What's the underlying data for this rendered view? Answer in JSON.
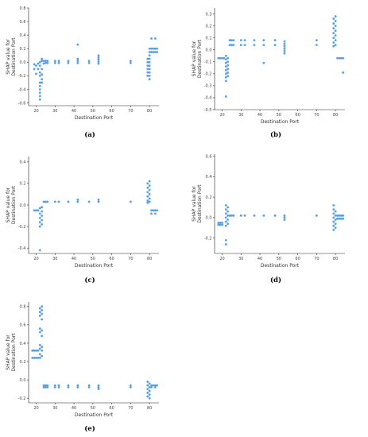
{
  "point_color": "#3a8fde",
  "chart_data": [
    {
      "type": "scatter",
      "caption": "(a)",
      "xlabel": "Destination Port",
      "ylabel": [
        "SHAP value for",
        "Destination Port"
      ],
      "xlim": [
        16,
        85
      ],
      "ylim": [
        -0.64,
        0.8
      ],
      "xticks": [
        20,
        30,
        40,
        50,
        60,
        70,
        80
      ],
      "yticks": [
        -0.6,
        -0.4,
        -0.2,
        0.0,
        0.2,
        0.4,
        0.6,
        0.8
      ],
      "points": [
        [
          19,
          -0.1
        ],
        [
          19,
          -0.03
        ],
        [
          20,
          -0.17
        ],
        [
          20,
          -0.05
        ],
        [
          21,
          -0.1
        ],
        [
          21,
          -0.02
        ],
        [
          22,
          -0.3
        ],
        [
          22,
          -0.35
        ],
        [
          22,
          -0.4
        ],
        [
          22,
          -0.45
        ],
        [
          22,
          -0.5
        ],
        [
          22,
          -0.55
        ],
        [
          22,
          -0.2
        ],
        [
          22,
          -0.15
        ],
        [
          22,
          0.0
        ],
        [
          22,
          -0.05
        ],
        [
          23,
          -0.1
        ],
        [
          23,
          -0.25
        ],
        [
          23,
          -0.3
        ],
        [
          23,
          0.02
        ],
        [
          23,
          0.05
        ],
        [
          23,
          -0.18
        ],
        [
          24,
          0.02
        ],
        [
          24,
          -0.02
        ],
        [
          25,
          0.02
        ],
        [
          25,
          -0.01
        ],
        [
          26,
          0.02
        ],
        [
          26,
          -0.01
        ],
        [
          30,
          0.02
        ],
        [
          30,
          -0.01
        ],
        [
          32,
          0.02
        ],
        [
          32,
          -0.01
        ],
        [
          37,
          0.02
        ],
        [
          37,
          -0.01
        ],
        [
          42,
          0.02
        ],
        [
          42,
          -0.01
        ],
        [
          42,
          0.05
        ],
        [
          42,
          0.26
        ],
        [
          48,
          0.02
        ],
        [
          48,
          -0.01
        ],
        [
          53,
          0.1
        ],
        [
          53,
          0.07
        ],
        [
          53,
          0.04
        ],
        [
          53,
          0.01
        ],
        [
          53,
          -0.02
        ],
        [
          70,
          0.02
        ],
        [
          70,
          -0.01
        ],
        [
          79,
          0.05
        ],
        [
          79,
          0.0
        ],
        [
          79,
          -0.05
        ],
        [
          79,
          -0.1
        ],
        [
          79,
          -0.15
        ],
        [
          79,
          -0.2
        ],
        [
          80,
          0.2
        ],
        [
          80,
          0.15
        ],
        [
          80,
          0.1
        ],
        [
          80,
          0.05
        ],
        [
          80,
          0.0
        ],
        [
          80,
          -0.05
        ],
        [
          80,
          -0.1
        ],
        [
          80,
          -0.15
        ],
        [
          80,
          -0.2
        ],
        [
          80,
          -0.25
        ],
        [
          81,
          0.2
        ],
        [
          81,
          0.15
        ],
        [
          82,
          0.2
        ],
        [
          82,
          0.15
        ],
        [
          83,
          0.2
        ],
        [
          83,
          0.15
        ],
        [
          84,
          0.2
        ],
        [
          84,
          0.15
        ],
        [
          81,
          0.35
        ],
        [
          83,
          0.35
        ]
      ]
    },
    {
      "type": "scatter",
      "caption": "(b)",
      "xlabel": "Destination Port",
      "ylabel": [
        "SHAP value for",
        "Destination Port"
      ],
      "xlim": [
        16,
        85
      ],
      "ylim": [
        -0.5,
        0.35
      ],
      "xticks": [
        20,
        30,
        40,
        50,
        60,
        70,
        80
      ],
      "yticks": [
        -0.5,
        -0.4,
        -0.3,
        -0.2,
        -0.1,
        0.0,
        0.1,
        0.2,
        0.3
      ],
      "points": [
        [
          18,
          -0.07
        ],
        [
          19,
          -0.07
        ],
        [
          20,
          -0.07
        ],
        [
          21,
          -0.07
        ],
        [
          22,
          -0.08
        ],
        [
          22,
          -0.11
        ],
        [
          22,
          -0.14
        ],
        [
          22,
          -0.17
        ],
        [
          22,
          -0.2
        ],
        [
          22,
          -0.23
        ],
        [
          22,
          -0.26
        ],
        [
          22,
          -0.39
        ],
        [
          22,
          -0.05
        ],
        [
          23,
          -0.07
        ],
        [
          23,
          -0.1
        ],
        [
          23,
          -0.13
        ],
        [
          23,
          -0.16
        ],
        [
          23,
          -0.19
        ],
        [
          23,
          -0.22
        ],
        [
          24,
          0.04
        ],
        [
          24,
          0.08
        ],
        [
          25,
          0.04
        ],
        [
          25,
          0.08
        ],
        [
          26,
          0.04
        ],
        [
          26,
          0.08
        ],
        [
          30,
          0.04
        ],
        [
          30,
          0.08
        ],
        [
          32,
          0.04
        ],
        [
          32,
          0.08
        ],
        [
          37,
          0.04
        ],
        [
          37,
          0.08
        ],
        [
          42,
          0.04
        ],
        [
          42,
          0.08
        ],
        [
          42,
          -0.11
        ],
        [
          48,
          0.04
        ],
        [
          48,
          0.08
        ],
        [
          53,
          0.07
        ],
        [
          53,
          0.05
        ],
        [
          53,
          0.03
        ],
        [
          53,
          0.01
        ],
        [
          53,
          -0.01
        ],
        [
          53,
          -0.03
        ],
        [
          70,
          0.04
        ],
        [
          70,
          0.08
        ],
        [
          79,
          0.26
        ],
        [
          79,
          0.22
        ],
        [
          79,
          0.18
        ],
        [
          79,
          0.14
        ],
        [
          79,
          0.1
        ],
        [
          79,
          0.06
        ],
        [
          79,
          0.03
        ],
        [
          80,
          0.28
        ],
        [
          80,
          0.24
        ],
        [
          80,
          0.2
        ],
        [
          80,
          0.16
        ],
        [
          80,
          0.12
        ],
        [
          80,
          0.08
        ],
        [
          80,
          0.04
        ],
        [
          81,
          -0.07
        ],
        [
          82,
          -0.07
        ],
        [
          83,
          -0.07
        ],
        [
          84,
          -0.07
        ],
        [
          84,
          -0.19
        ]
      ]
    },
    {
      "type": "scatter",
      "caption": "(c)",
      "xlabel": "Destination Port",
      "ylabel": [
        "SHAP value for",
        "Destination Port"
      ],
      "xlim": [
        16,
        85
      ],
      "ylim": [
        -0.45,
        0.45
      ],
      "xticks": [
        20,
        30,
        40,
        50,
        60,
        70,
        80
      ],
      "yticks": [
        -0.4,
        -0.2,
        0.0,
        0.2,
        0.4
      ],
      "points": [
        [
          19,
          -0.05
        ],
        [
          20,
          -0.05
        ],
        [
          21,
          -0.05
        ],
        [
          22,
          -0.08
        ],
        [
          22,
          -0.12
        ],
        [
          22,
          -0.16
        ],
        [
          22,
          -0.2
        ],
        [
          22,
          -0.42
        ],
        [
          22,
          -0.03
        ],
        [
          23,
          -0.06
        ],
        [
          23,
          -0.1
        ],
        [
          23,
          -0.14
        ],
        [
          23,
          -0.18
        ],
        [
          23,
          -0.02
        ],
        [
          24,
          0.03
        ],
        [
          25,
          0.03
        ],
        [
          26,
          0.03
        ],
        [
          30,
          0.03
        ],
        [
          32,
          0.03
        ],
        [
          37,
          0.03
        ],
        [
          42,
          0.03
        ],
        [
          42,
          0.05
        ],
        [
          48,
          0.03
        ],
        [
          53,
          0.03
        ],
        [
          53,
          0.05
        ],
        [
          70,
          0.03
        ],
        [
          79,
          0.2
        ],
        [
          79,
          0.16
        ],
        [
          79,
          0.12
        ],
        [
          79,
          0.08
        ],
        [
          79,
          0.04
        ],
        [
          79,
          0.02
        ],
        [
          80,
          0.22
        ],
        [
          80,
          0.18
        ],
        [
          80,
          0.14
        ],
        [
          80,
          0.1
        ],
        [
          80,
          0.06
        ],
        [
          80,
          0.03
        ],
        [
          81,
          -0.05
        ],
        [
          82,
          -0.05
        ],
        [
          83,
          -0.05
        ],
        [
          84,
          -0.05
        ],
        [
          81,
          -0.08
        ],
        [
          83,
          -0.08
        ]
      ]
    },
    {
      "type": "scatter",
      "caption": "(d)",
      "xlabel": "Destination Port",
      "ylabel": [
        "SHAP value for",
        "Destination Port"
      ],
      "xlim": [
        16,
        85
      ],
      "ylim": [
        -0.35,
        0.62
      ],
      "xticks": [
        20,
        30,
        40,
        50,
        60,
        70,
        80
      ],
      "yticks": [
        -0.2,
        0.0,
        0.2,
        0.4,
        0.6
      ],
      "points": [
        [
          18,
          -0.05
        ],
        [
          18,
          -0.07
        ],
        [
          19,
          -0.05
        ],
        [
          19,
          -0.07
        ],
        [
          20,
          -0.05
        ],
        [
          20,
          -0.07
        ],
        [
          22,
          0.12
        ],
        [
          22,
          0.08
        ],
        [
          22,
          0.04
        ],
        [
          22,
          0.0
        ],
        [
          22,
          -0.04
        ],
        [
          22,
          -0.08
        ],
        [
          22,
          -0.22
        ],
        [
          22,
          -0.26
        ],
        [
          23,
          0.1
        ],
        [
          23,
          0.06
        ],
        [
          23,
          0.02
        ],
        [
          23,
          -0.02
        ],
        [
          23,
          -0.06
        ],
        [
          24,
          0.02
        ],
        [
          25,
          0.02
        ],
        [
          26,
          0.02
        ],
        [
          30,
          0.02
        ],
        [
          32,
          0.02
        ],
        [
          37,
          0.02
        ],
        [
          42,
          0.02
        ],
        [
          48,
          0.02
        ],
        [
          53,
          0.02
        ],
        [
          53,
          0.0
        ],
        [
          53,
          -0.02
        ],
        [
          70,
          0.02
        ],
        [
          79,
          0.12
        ],
        [
          79,
          0.08
        ],
        [
          79,
          0.04
        ],
        [
          79,
          0.0
        ],
        [
          79,
          -0.04
        ],
        [
          79,
          -0.08
        ],
        [
          79,
          -0.12
        ],
        [
          80,
          0.06
        ],
        [
          80,
          0.02
        ],
        [
          80,
          -0.02
        ],
        [
          80,
          -0.06
        ],
        [
          80,
          -0.1
        ],
        [
          81,
          0.02
        ],
        [
          81,
          -0.01
        ],
        [
          82,
          0.02
        ],
        [
          82,
          -0.01
        ],
        [
          83,
          0.02
        ],
        [
          83,
          -0.01
        ],
        [
          84,
          0.02
        ],
        [
          84,
          -0.01
        ]
      ]
    },
    {
      "type": "scatter",
      "caption": "(e)",
      "xlabel": "Destination Port",
      "ylabel": [
        "SHAP value for",
        "Destination Port"
      ],
      "xlim": [
        16,
        85
      ],
      "ylim": [
        -0.25,
        0.85
      ],
      "xticks": [
        20,
        30,
        40,
        50,
        60,
        70,
        80
      ],
      "yticks": [
        -0.2,
        0.0,
        0.2,
        0.4,
        0.6,
        0.8
      ],
      "points": [
        [
          18,
          0.32
        ],
        [
          18,
          0.24
        ],
        [
          19,
          0.32
        ],
        [
          19,
          0.24
        ],
        [
          20,
          0.32
        ],
        [
          20,
          0.24
        ],
        [
          21,
          0.32
        ],
        [
          21,
          0.24
        ],
        [
          22,
          0.78
        ],
        [
          22,
          0.74
        ],
        [
          22,
          0.7
        ],
        [
          22,
          0.56
        ],
        [
          22,
          0.52
        ],
        [
          22,
          0.38
        ],
        [
          22,
          0.34
        ],
        [
          22,
          0.28
        ],
        [
          22,
          0.24
        ],
        [
          23,
          0.8
        ],
        [
          23,
          0.76
        ],
        [
          23,
          0.72
        ],
        [
          23,
          0.66
        ],
        [
          23,
          0.54
        ],
        [
          23,
          0.48
        ],
        [
          23,
          0.36
        ],
        [
          23,
          0.32
        ],
        [
          23,
          0.26
        ],
        [
          24,
          -0.06
        ],
        [
          24,
          -0.08
        ],
        [
          25,
          -0.06
        ],
        [
          25,
          -0.08
        ],
        [
          26,
          -0.06
        ],
        [
          26,
          -0.08
        ],
        [
          30,
          -0.06
        ],
        [
          30,
          -0.08
        ],
        [
          32,
          -0.06
        ],
        [
          32,
          -0.08
        ],
        [
          37,
          -0.06
        ],
        [
          37,
          -0.08
        ],
        [
          42,
          -0.06
        ],
        [
          42,
          -0.08
        ],
        [
          48,
          -0.06
        ],
        [
          48,
          -0.08
        ],
        [
          53,
          -0.06
        ],
        [
          53,
          -0.08
        ],
        [
          53,
          -0.1
        ],
        [
          70,
          -0.06
        ],
        [
          70,
          -0.08
        ],
        [
          79,
          -0.02
        ],
        [
          79,
          -0.06
        ],
        [
          79,
          -0.1
        ],
        [
          79,
          -0.14
        ],
        [
          79,
          -0.18
        ],
        [
          80,
          -0.04
        ],
        [
          80,
          -0.08
        ],
        [
          80,
          -0.12
        ],
        [
          80,
          -0.16
        ],
        [
          80,
          -0.2
        ],
        [
          81,
          -0.06
        ],
        [
          82,
          -0.06
        ],
        [
          83,
          -0.06
        ],
        [
          84,
          -0.06
        ],
        [
          81,
          -0.08
        ],
        [
          83,
          -0.08
        ]
      ]
    }
  ]
}
